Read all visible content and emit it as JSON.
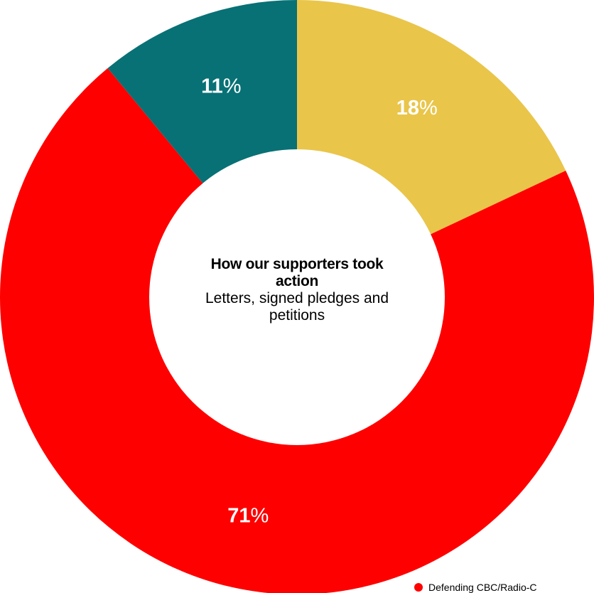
{
  "chart_data": {
    "type": "pie",
    "variant": "donut",
    "slices": [
      {
        "label_value": "18",
        "value": 18,
        "color": "#E9C54A"
      },
      {
        "label_value": "71",
        "value": 71,
        "color": "#FF0000"
      },
      {
        "label_value": "11",
        "value": 11,
        "color": "#087175"
      }
    ],
    "percent_sign": "%",
    "center_title": "How our supporters took action",
    "center_subtitle": "Letters, signed pledges and petitions",
    "legend": [
      {
        "label": "Defending CBC/Radio-C",
        "color": "#FF0000"
      }
    ],
    "legend_placement": "bottom-right"
  }
}
